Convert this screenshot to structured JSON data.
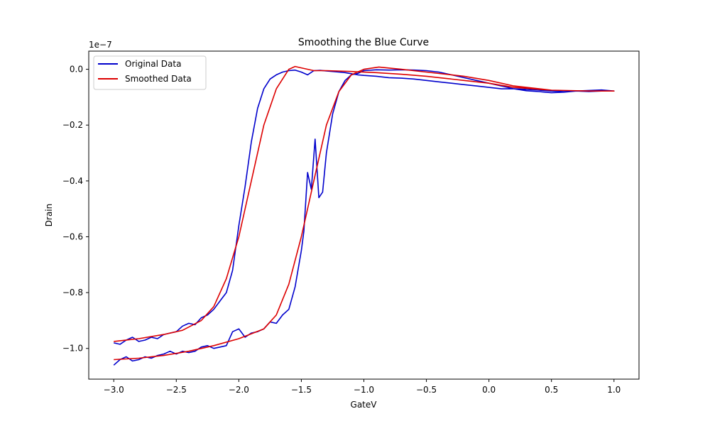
{
  "chart_data": {
    "type": "line",
    "title": "Smoothing the Blue Curve",
    "xlabel": "GateV",
    "ylabel": "Drain",
    "y_offset_text": "1e−7",
    "xlim": [
      -3.2,
      1.2
    ],
    "ylim": [
      -1.11e-07,
      6.5e-09
    ],
    "x_ticks": [
      -3.0,
      -2.5,
      -2.0,
      -1.5,
      -1.0,
      -0.5,
      0.0,
      0.5,
      1.0
    ],
    "x_tick_labels": [
      "−3.0",
      "−2.5",
      "−2.0",
      "−1.5",
      "−1.0",
      "−0.5",
      "0.0",
      "0.5",
      "1.0"
    ],
    "y_ticks": [
      -1e-07,
      -8e-08,
      -6e-08,
      -4e-08,
      -2e-08,
      0.0
    ],
    "y_tick_labels": [
      "−1.0",
      "−0.8",
      "−0.6",
      "−0.4",
      "−0.2",
      "0.0"
    ],
    "grid": false,
    "legend_position": "top-left",
    "series": [
      {
        "name": "Original Data",
        "color": "#0000cc",
        "x": [
          -3.0,
          -2.95,
          -2.9,
          -2.85,
          -2.8,
          -2.75,
          -2.7,
          -2.65,
          -2.6,
          -2.55,
          -2.5,
          -2.45,
          -2.4,
          -2.35,
          -2.3,
          -2.25,
          -2.2,
          -2.15,
          -2.1,
          -2.05,
          -2.0,
          -1.95,
          -1.9,
          -1.85,
          -1.8,
          -1.75,
          -1.7,
          -1.65,
          -1.6,
          -1.55,
          -1.5,
          -1.45,
          -1.4,
          -1.35,
          -1.3,
          -1.25,
          -1.2,
          -1.15,
          -1.1,
          -1.05,
          -1.0,
          -0.9,
          -0.8,
          -0.7,
          -0.6,
          -0.5,
          -0.4,
          -0.3,
          -0.2,
          -0.1,
          0.0,
          0.1,
          0.2,
          0.3,
          0.4,
          0.5,
          0.6,
          0.7,
          0.8,
          0.9,
          1.0,
          0.95,
          0.9,
          0.85,
          0.8,
          0.7,
          0.6,
          0.5,
          0.4,
          0.3,
          0.2,
          0.1,
          0.0,
          -0.1,
          -0.2,
          -0.3,
          -0.4,
          -0.5,
          -0.6,
          -0.7,
          -0.8,
          -0.9,
          -1.0,
          -1.05,
          -1.1,
          -1.15,
          -1.2,
          -1.25,
          -1.3,
          -1.33,
          -1.36,
          -1.39,
          -1.42,
          -1.45,
          -1.48,
          -1.5,
          -1.55,
          -1.6,
          -1.65,
          -1.7,
          -1.75,
          -1.8,
          -1.85,
          -1.9,
          -1.95,
          -2.0,
          -2.05,
          -2.1,
          -2.15,
          -2.2,
          -2.25,
          -2.3,
          -2.35,
          -2.4,
          -2.45,
          -2.5,
          -2.55,
          -2.6,
          -2.65,
          -2.7,
          -2.75,
          -2.8,
          -2.85,
          -2.9,
          -2.95,
          -3.0
        ],
        "y": [
          -9.8e-08,
          -9.85e-08,
          -9.7e-08,
          -9.6e-08,
          -9.75e-08,
          -9.7e-08,
          -9.6e-08,
          -9.65e-08,
          -9.5e-08,
          -9.45e-08,
          -9.4e-08,
          -9.2e-08,
          -9.1e-08,
          -9.15e-08,
          -8.9e-08,
          -8.8e-08,
          -8.6e-08,
          -8.3e-08,
          -8e-08,
          -7.2e-08,
          -5.6e-08,
          -4.2e-08,
          -2.6e-08,
          -1.4e-08,
          -7e-09,
          -3.5e-09,
          -2e-09,
          -1e-09,
          -5e-10,
          -3e-10,
          -1e-09,
          -2e-09,
          -5e-10,
          -4e-10,
          -6e-10,
          -8e-10,
          -1e-09,
          -1.2e-09,
          -1.6e-09,
          -2e-09,
          -2.2e-09,
          -2.5e-09,
          -3e-09,
          -3.2e-09,
          -3.5e-09,
          -4e-09,
          -4.5e-09,
          -5e-09,
          -5.5e-09,
          -6e-09,
          -6.5e-09,
          -7e-09,
          -7e-09,
          -7.2e-09,
          -7.5e-09,
          -7.8e-09,
          -8e-09,
          -7.8e-09,
          -8e-09,
          -7.8e-09,
          -7.8e-09,
          -7.6e-09,
          -7.4e-09,
          -7.5e-09,
          -7.6e-09,
          -7.8e-09,
          -8.2e-09,
          -8.4e-09,
          -8e-09,
          -7.7e-09,
          -7e-09,
          -6e-09,
          -5e-09,
          -4e-09,
          -3e-09,
          -2e-09,
          -1e-09,
          -5e-10,
          -3e-10,
          -2e-10,
          -3e-10,
          -2e-10,
          -5e-10,
          -1.5e-09,
          -2e-09,
          -4e-09,
          -8e-09,
          -1.6e-08,
          -3e-08,
          -4.4e-08,
          -4.6e-08,
          -2.5e-08,
          -4.3e-08,
          -3.7e-08,
          -5.8e-08,
          -6.5e-08,
          -7.8e-08,
          -8.6e-08,
          -8.8e-08,
          -9.1e-08,
          -9.05e-08,
          -9.3e-08,
          -9.4e-08,
          -9.45e-08,
          -9.6e-08,
          -9.3e-08,
          -9.4e-08,
          -9.9e-08,
          -9.95e-08,
          -1e-07,
          -9.9e-08,
          -9.95e-08,
          -1.01e-07,
          -1.015e-07,
          -1.01e-07,
          -1.02e-07,
          -1.01e-07,
          -1.02e-07,
          -1.025e-07,
          -1.035e-07,
          -1.03e-07,
          -1.04e-07,
          -1.045e-07,
          -1.03e-07,
          -1.04e-07,
          -1.06e-07
        ]
      },
      {
        "name": "Smoothed Data",
        "color": "#dd0000",
        "x": [
          -3.0,
          -2.8,
          -2.6,
          -2.45,
          -2.3,
          -2.2,
          -2.1,
          -2.0,
          -1.9,
          -1.8,
          -1.7,
          -1.6,
          -1.55,
          -1.5,
          -1.4,
          -1.3,
          -1.1,
          -0.9,
          -0.7,
          -0.5,
          -0.2,
          0.0,
          0.2,
          0.5,
          0.8,
          1.0,
          0.8,
          0.5,
          0.2,
          0.0,
          -0.2,
          -0.5,
          -0.7,
          -0.88,
          -1.0,
          -1.1,
          -1.2,
          -1.3,
          -1.4,
          -1.5,
          -1.6,
          -1.7,
          -1.8,
          -2.0,
          -2.2,
          -2.4,
          -2.6,
          -2.8,
          -3.0
        ],
        "y": [
          -9.75e-08,
          -9.65e-08,
          -9.5e-08,
          -9.35e-08,
          -9e-08,
          -8.5e-08,
          -7.5e-08,
          -6e-08,
          -4e-08,
          -2e-08,
          -7e-09,
          0.0,
          1e-09,
          5e-10,
          -5e-10,
          -5e-10,
          -8e-10,
          -1.2e-09,
          -1.8e-09,
          -2.5e-09,
          -4e-09,
          -5e-09,
          -6.5e-09,
          -7.5e-09,
          -7.8e-09,
          -7.8e-09,
          -7.8e-09,
          -7.5e-09,
          -6e-09,
          -4e-09,
          -2.5e-09,
          -1e-09,
          0.0,
          8e-10,
          0.0,
          -2e-09,
          -8e-09,
          -2e-08,
          -4e-08,
          -6e-08,
          -7.7e-08,
          -8.8e-08,
          -9.3e-08,
          -9.65e-08,
          -9.9e-08,
          -1.01e-07,
          -1.025e-07,
          -1.035e-07,
          -1.04e-07
        ]
      }
    ]
  }
}
